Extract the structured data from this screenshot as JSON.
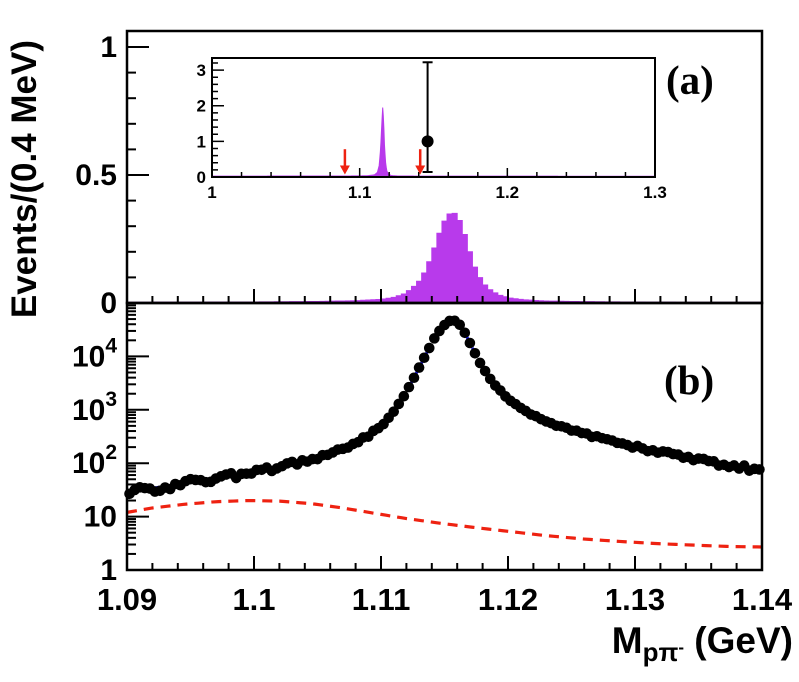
{
  "figure": {
    "y_axis_title": "Events/(0.4 MeV)",
    "x_axis_title": {
      "prefix": "M",
      "sub": "pπ",
      "sub_sup": "-",
      "suffix": " (GeV)"
    },
    "panel_a_label": "(a)",
    "panel_b_label": "(b)"
  },
  "colors": {
    "histogram_fill": "#b83aeb",
    "fit_curve": "#1414f2",
    "background_curve": "#ee2211",
    "arrow": "#ee2211",
    "marker": "#000000",
    "frame": "#000000"
  },
  "chart_data": [
    {
      "id": "panel-a",
      "type": "area",
      "title": "",
      "ylabel": "Events/(0.4 MeV)",
      "xlabel": "M_ppi- (GeV)",
      "xlim": [
        1.09,
        1.14
      ],
      "ylim": [
        0,
        1.0625
      ],
      "x_major_tick_step": 0.01,
      "x_minor_tick_step": 0.002,
      "y_ticks": [
        {
          "v": 0,
          "label": "0"
        },
        {
          "v": 0.5,
          "label": "0.5"
        },
        {
          "v": 1,
          "label": "1"
        }
      ],
      "y_minor_tick_step": 0.1,
      "bin_width_gev": 0.0004,
      "peak": {
        "center_gev": 1.1157,
        "height": 0.355
      },
      "envelope": [
        [
          1.09,
          0.003
        ],
        [
          1.1,
          0.004
        ],
        [
          1.105,
          0.006
        ],
        [
          1.108,
          0.009
        ],
        [
          1.11,
          0.014
        ],
        [
          1.111,
          0.022
        ],
        [
          1.1118,
          0.035
        ],
        [
          1.1124,
          0.055
        ],
        [
          1.113,
          0.085
        ],
        [
          1.1135,
          0.125
        ],
        [
          1.114,
          0.185
        ],
        [
          1.1144,
          0.245
        ],
        [
          1.1148,
          0.3
        ],
        [
          1.1152,
          0.34
        ],
        [
          1.1156,
          0.355
        ],
        [
          1.116,
          0.345
        ],
        [
          1.1164,
          0.3
        ],
        [
          1.1168,
          0.235
        ],
        [
          1.1172,
          0.165
        ],
        [
          1.1176,
          0.115
        ],
        [
          1.1181,
          0.075
        ],
        [
          1.1187,
          0.047
        ],
        [
          1.1194,
          0.03
        ],
        [
          1.1202,
          0.019
        ],
        [
          1.1212,
          0.013
        ],
        [
          1.1228,
          0.008
        ],
        [
          1.125,
          0.006
        ],
        [
          1.129,
          0.004
        ],
        [
          1.134,
          0.003
        ],
        [
          1.14,
          0.0028
        ]
      ]
    },
    {
      "id": "inset",
      "type": "area",
      "title": "",
      "xlim": [
        1.0,
        1.3
      ],
      "ylim": [
        0,
        3.34
      ],
      "x_ticks": [
        {
          "v": 1,
          "label": "1"
        },
        {
          "v": 1.1,
          "label": "1.1"
        },
        {
          "v": 1.2,
          "label": "1.2"
        },
        {
          "v": 1.3,
          "label": "1.3"
        }
      ],
      "y_ticks": [
        {
          "v": 0,
          "label": "0"
        },
        {
          "v": 1,
          "label": "1"
        },
        {
          "v": 2,
          "label": "2"
        },
        {
          "v": 3,
          "label": "3"
        }
      ],
      "x_minor_tick_step": 0.02,
      "y_minor_tick_step": 0.2,
      "envelope": [
        [
          1.0,
          0.025
        ],
        [
          1.09,
          0.028
        ],
        [
          1.105,
          0.035
        ],
        [
          1.11,
          0.06
        ],
        [
          1.112,
          0.13
        ],
        [
          1.1132,
          0.32
        ],
        [
          1.1142,
          0.8
        ],
        [
          1.115,
          1.5
        ],
        [
          1.1156,
          1.95
        ],
        [
          1.1162,
          1.6
        ],
        [
          1.1168,
          0.9
        ],
        [
          1.1175,
          0.42
        ],
        [
          1.1183,
          0.18
        ],
        [
          1.1195,
          0.08
        ],
        [
          1.1215,
          0.04
        ],
        [
          1.126,
          0.028
        ],
        [
          1.15,
          0.024
        ],
        [
          1.3,
          0.022
        ]
      ],
      "arrows": [
        {
          "x": 1.09,
          "y_tail": 0.78,
          "y_tip": 0.07
        },
        {
          "x": 1.141,
          "y_tail": 0.78,
          "y_tip": 0.07
        }
      ],
      "data_point": {
        "x": 1.146,
        "y": 1.0,
        "err_up": 2.22,
        "err_down": 0.86
      }
    },
    {
      "id": "panel-b",
      "type": "scatter",
      "title": "",
      "y_scale": "log",
      "xlim": [
        1.09,
        1.14
      ],
      "ylim": [
        1,
        100000
      ],
      "x_major_tick_step": 0.01,
      "x_minor_tick_step": 0.002,
      "x_ticks": [
        {
          "v": 1.09,
          "label": "1.09"
        },
        {
          "v": 1.1,
          "label": "1.1"
        },
        {
          "v": 1.11,
          "label": "1.11"
        },
        {
          "v": 1.12,
          "label": "1.12"
        },
        {
          "v": 1.13,
          "label": "1.13"
        },
        {
          "v": 1.14,
          "label": "1.14"
        }
      ],
      "y_ticks": [
        {
          "v": 1,
          "base": "1",
          "exp": ""
        },
        {
          "v": 10,
          "base": "10",
          "exp": ""
        },
        {
          "v": 100,
          "base": "10",
          "exp": "2"
        },
        {
          "v": 1000,
          "base": "10",
          "exp": "3"
        },
        {
          "v": 10000,
          "base": "10",
          "exp": "4"
        }
      ],
      "bin_width_gev": 0.0004,
      "marker_radius_px": 5.3,
      "scatter_model": {
        "log_amp_base": 0.12,
        "ref_counts": 50
      },
      "fit_curve": [
        [
          1.09,
          30
        ],
        [
          1.092,
          34
        ],
        [
          1.094,
          40
        ],
        [
          1.096,
          47
        ],
        [
          1.098,
          56
        ],
        [
          1.1,
          68
        ],
        [
          1.102,
          85
        ],
        [
          1.104,
          110
        ],
        [
          1.106,
          150
        ],
        [
          1.1075,
          210
        ],
        [
          1.109,
          330
        ],
        [
          1.11,
          500
        ],
        [
          1.111,
          900
        ],
        [
          1.1118,
          1800
        ],
        [
          1.1125,
          3600
        ],
        [
          1.1131,
          6800
        ],
        [
          1.1137,
          13000
        ],
        [
          1.1143,
          24000
        ],
        [
          1.1149,
          37000
        ],
        [
          1.1154,
          46000
        ],
        [
          1.1157,
          48000
        ],
        [
          1.1161,
          42000
        ],
        [
          1.1165,
          31000
        ],
        [
          1.1169,
          20000
        ],
        [
          1.1174,
          11500
        ],
        [
          1.1179,
          6800
        ],
        [
          1.1185,
          4100
        ],
        [
          1.1191,
          2700
        ],
        [
          1.1198,
          1800
        ],
        [
          1.1206,
          1250
        ],
        [
          1.1215,
          900
        ],
        [
          1.1226,
          680
        ],
        [
          1.124,
          500
        ],
        [
          1.1258,
          370
        ],
        [
          1.1276,
          280
        ],
        [
          1.1295,
          215
        ],
        [
          1.1315,
          170
        ],
        [
          1.1335,
          135
        ],
        [
          1.1355,
          110
        ],
        [
          1.1375,
          90
        ],
        [
          1.139,
          78
        ],
        [
          1.14,
          70
        ]
      ],
      "background_curve": [
        [
          1.09,
          12
        ],
        [
          1.092,
          14.5
        ],
        [
          1.0945,
          17
        ],
        [
          1.097,
          19
        ],
        [
          1.0995,
          20
        ],
        [
          1.102,
          19.5
        ],
        [
          1.1045,
          17.5
        ],
        [
          1.107,
          14.5
        ],
        [
          1.1095,
          11.5
        ],
        [
          1.112,
          9.2
        ],
        [
          1.1145,
          7.6
        ],
        [
          1.117,
          6.4
        ],
        [
          1.12,
          5.3
        ],
        [
          1.123,
          4.4
        ],
        [
          1.126,
          3.8
        ],
        [
          1.129,
          3.4
        ],
        [
          1.132,
          3.1
        ],
        [
          1.135,
          2.9
        ],
        [
          1.1375,
          2.75
        ],
        [
          1.14,
          2.7
        ]
      ]
    }
  ]
}
